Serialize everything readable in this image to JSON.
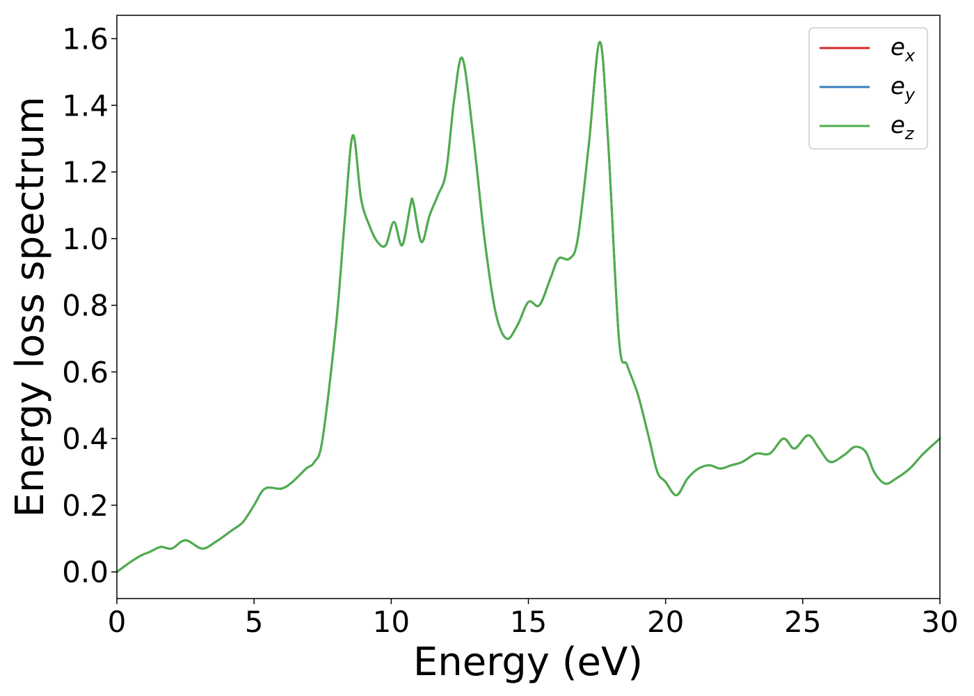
{
  "chart_data": {
    "type": "line",
    "title": "",
    "xlabel": "Energy (eV)",
    "ylabel": "Energy loss spectrum",
    "xlim": [
      0,
      30
    ],
    "ylim": [
      -0.08,
      1.67
    ],
    "grid": false,
    "legend_position": "top-right",
    "x_ticks": [
      "0",
      "5",
      "10",
      "15",
      "20",
      "25",
      "30"
    ],
    "y_ticks": [
      "0.0",
      "0.2",
      "0.4",
      "0.6",
      "0.8",
      "1.0",
      "1.2",
      "1.4",
      "1.6"
    ],
    "x_tick_values": [
      0,
      5,
      10,
      15,
      20,
      25,
      30
    ],
    "y_tick_values": [
      0.0,
      0.2,
      0.4,
      0.6,
      0.8,
      1.0,
      1.2,
      1.4,
      1.6
    ],
    "x": [
      0,
      0.5,
      0.9,
      1.2,
      1.6,
      2.0,
      2.5,
      3.1,
      3.6,
      4.2,
      4.6,
      5.0,
      5.4,
      6.0,
      6.4,
      6.9,
      7.2,
      7.5,
      8.0,
      8.3,
      8.6,
      8.9,
      9.2,
      9.5,
      9.8,
      10.1,
      10.4,
      10.7,
      10.8,
      11.1,
      11.4,
      11.7,
      12.0,
      12.3,
      12.6,
      13.0,
      13.4,
      13.8,
      14.2,
      14.6,
      15.0,
      15.4,
      15.8,
      16.1,
      16.5,
      16.8,
      17.2,
      17.6,
      17.9,
      18.3,
      18.6,
      19.0,
      19.4,
      19.7,
      20.0,
      20.4,
      20.8,
      21.2,
      21.6,
      22.0,
      22.4,
      22.8,
      23.3,
      23.8,
      24.3,
      24.7,
      25.2,
      25.6,
      26.0,
      26.5,
      26.9,
      27.3,
      27.6,
      28.0,
      28.4,
      28.9,
      29.4,
      30.0
    ],
    "series": [
      {
        "name": "e_x",
        "label_base": "e",
        "label_sub": "x",
        "color": "#d62728",
        "values": [
          0.0,
          0.03,
          0.05,
          0.06,
          0.075,
          0.07,
          0.095,
          0.07,
          0.09,
          0.125,
          0.15,
          0.2,
          0.25,
          0.25,
          0.27,
          0.31,
          0.33,
          0.4,
          0.75,
          1.05,
          1.31,
          1.12,
          1.04,
          0.99,
          0.98,
          1.05,
          0.98,
          1.1,
          1.11,
          0.99,
          1.07,
          1.13,
          1.2,
          1.42,
          1.54,
          1.3,
          1.0,
          0.78,
          0.7,
          0.74,
          0.81,
          0.8,
          0.88,
          0.94,
          0.94,
          1.0,
          1.28,
          1.59,
          1.3,
          0.7,
          0.62,
          0.53,
          0.4,
          0.3,
          0.27,
          0.23,
          0.28,
          0.31,
          0.32,
          0.31,
          0.32,
          0.33,
          0.355,
          0.355,
          0.4,
          0.37,
          0.41,
          0.37,
          0.33,
          0.35,
          0.375,
          0.36,
          0.3,
          0.265,
          0.28,
          0.31,
          0.355,
          0.4
        ]
      },
      {
        "name": "e_y",
        "label_base": "e",
        "label_sub": "y",
        "color": "#377eb8",
        "values": [
          0.0,
          0.03,
          0.05,
          0.06,
          0.075,
          0.07,
          0.095,
          0.07,
          0.09,
          0.125,
          0.15,
          0.2,
          0.25,
          0.25,
          0.27,
          0.31,
          0.33,
          0.4,
          0.75,
          1.05,
          1.31,
          1.12,
          1.04,
          0.99,
          0.98,
          1.05,
          0.98,
          1.1,
          1.11,
          0.99,
          1.07,
          1.13,
          1.2,
          1.42,
          1.54,
          1.3,
          1.0,
          0.78,
          0.7,
          0.74,
          0.81,
          0.8,
          0.88,
          0.94,
          0.94,
          1.0,
          1.28,
          1.59,
          1.3,
          0.7,
          0.62,
          0.53,
          0.4,
          0.3,
          0.27,
          0.23,
          0.28,
          0.31,
          0.32,
          0.31,
          0.32,
          0.33,
          0.355,
          0.355,
          0.4,
          0.37,
          0.41,
          0.37,
          0.33,
          0.35,
          0.375,
          0.36,
          0.3,
          0.265,
          0.28,
          0.31,
          0.355,
          0.4
        ]
      },
      {
        "name": "e_z",
        "label_base": "e",
        "label_sub": "z",
        "color": "#4daf4a",
        "values": [
          0.0,
          0.03,
          0.05,
          0.06,
          0.075,
          0.07,
          0.095,
          0.07,
          0.09,
          0.125,
          0.15,
          0.2,
          0.25,
          0.25,
          0.27,
          0.31,
          0.33,
          0.4,
          0.75,
          1.05,
          1.31,
          1.12,
          1.04,
          0.99,
          0.98,
          1.05,
          0.98,
          1.1,
          1.11,
          0.99,
          1.07,
          1.13,
          1.2,
          1.42,
          1.54,
          1.3,
          1.0,
          0.78,
          0.7,
          0.74,
          0.81,
          0.8,
          0.88,
          0.94,
          0.94,
          1.0,
          1.28,
          1.59,
          1.3,
          0.7,
          0.62,
          0.53,
          0.4,
          0.3,
          0.27,
          0.23,
          0.28,
          0.31,
          0.32,
          0.31,
          0.32,
          0.33,
          0.355,
          0.355,
          0.4,
          0.37,
          0.41,
          0.37,
          0.33,
          0.35,
          0.375,
          0.36,
          0.3,
          0.265,
          0.28,
          0.31,
          0.355,
          0.4
        ]
      }
    ]
  }
}
